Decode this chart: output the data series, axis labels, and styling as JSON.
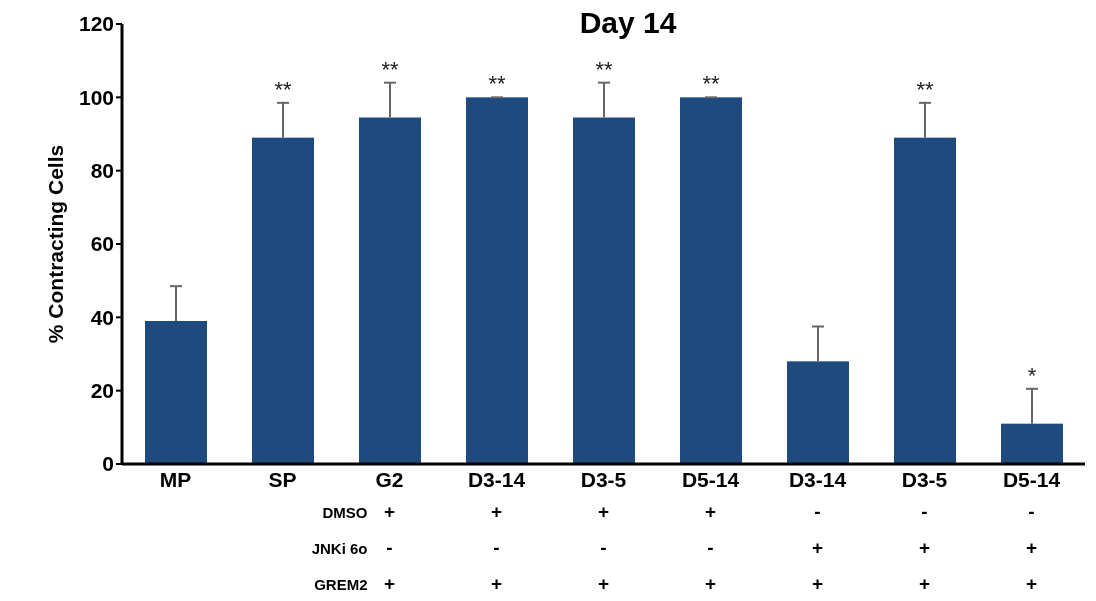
{
  "chart_data": {
    "type": "bar",
    "title": "Day 14",
    "ylabel": "% Contracting Cells",
    "categories": [
      "MP",
      "SP",
      "G2",
      "D3-14",
      "D3-5",
      "D5-14",
      "D3-14",
      "D3-5",
      "D5-14"
    ],
    "values": [
      39,
      89,
      94.5,
      100,
      94.5,
      100,
      28,
      89,
      11
    ],
    "errors": [
      9.5,
      9.5,
      9.5,
      0,
      9.5,
      0,
      9.5,
      9.5,
      9.5
    ],
    "value_labels": [
      null,
      "**",
      "**",
      "**",
      "**",
      "**",
      null,
      "**",
      "*"
    ],
    "color": "#1f4a7e",
    "ylim": [
      0,
      120
    ],
    "yticks": [
      0,
      20,
      40,
      60,
      80,
      100,
      120
    ],
    "grid": false,
    "legend": false,
    "annotations": [
      "DMSO + + + + - - -",
      "JNKi 6o - - - - + + +",
      "GREM2 + + + + + + +"
    ]
  }
}
